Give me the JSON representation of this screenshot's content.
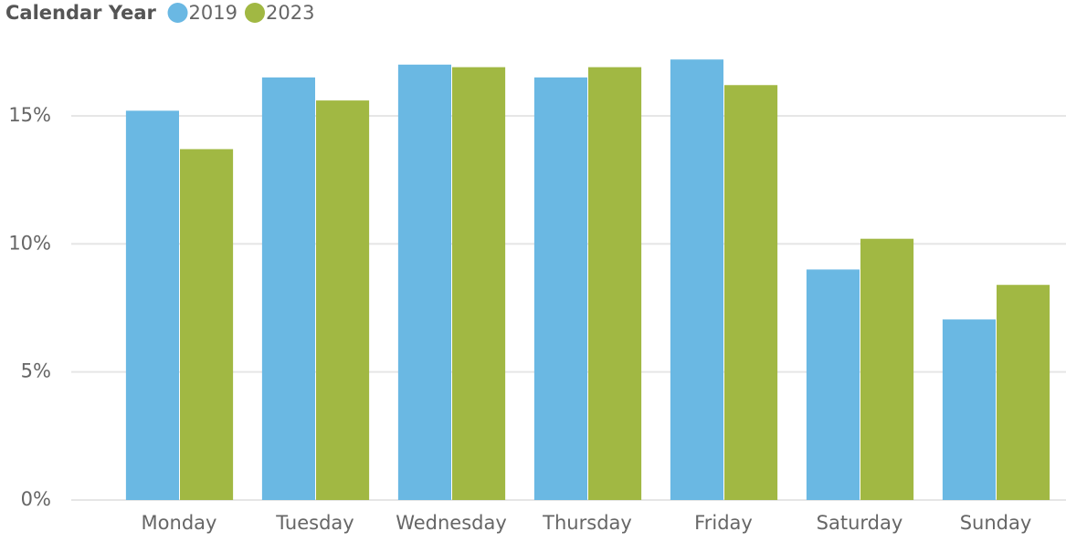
{
  "chart_data": {
    "type": "bar",
    "legend_title": "Calendar Year",
    "categories": [
      "Monday",
      "Tuesday",
      "Wednesday",
      "Thursday",
      "Friday",
      "Saturday",
      "Sunday"
    ],
    "series": [
      {
        "name": "2019",
        "color": "#6ab8e3",
        "values": [
          15.2,
          16.5,
          17.0,
          16.5,
          17.2,
          9.0,
          7.05
        ]
      },
      {
        "name": "2023",
        "color": "#a1b843",
        "values": [
          13.7,
          15.6,
          16.9,
          16.9,
          16.2,
          10.2,
          8.4
        ]
      }
    ],
    "ylim": [
      0,
      19
    ],
    "yticks": [
      {
        "value": 0,
        "label": "0%"
      },
      {
        "value": 5,
        "label": "5%"
      },
      {
        "value": 10,
        "label": "10%"
      },
      {
        "value": 15,
        "label": "15%"
      }
    ],
    "grid": true,
    "legend_position": "top-left"
  }
}
